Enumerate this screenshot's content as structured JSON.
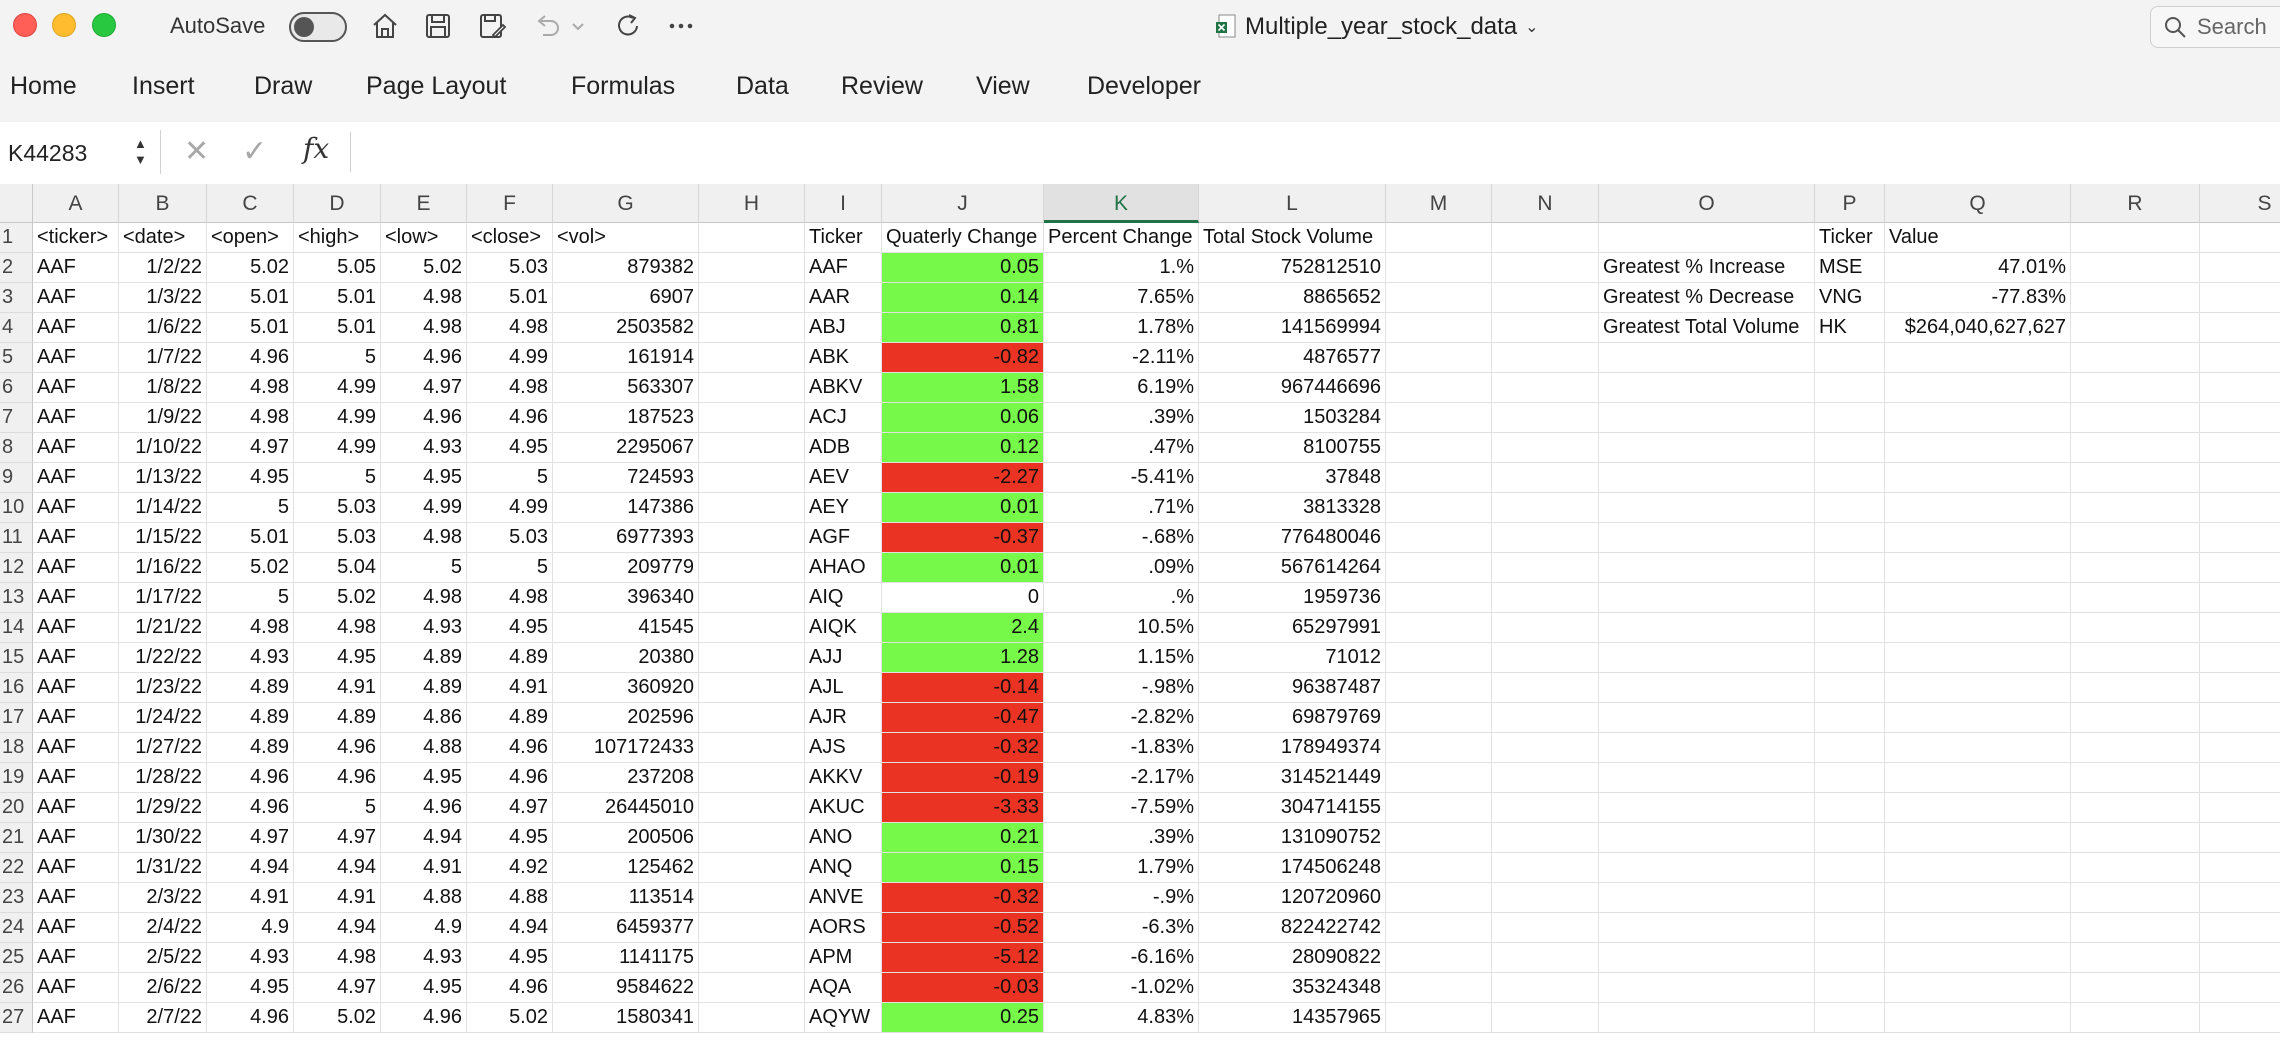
{
  "window": {
    "autosave_label": "AutoSave",
    "doc_title": "Multiple_year_stock_data",
    "search_placeholder": "Search"
  },
  "ribbon_tabs": [
    "Home",
    "Insert",
    "Draw",
    "Page Layout",
    "Formulas",
    "Data",
    "Review",
    "View",
    "Developer"
  ],
  "formula_bar": {
    "cell_ref": "K44283",
    "fx": "fx",
    "content": ""
  },
  "columns": [
    "A",
    "B",
    "C",
    "D",
    "E",
    "F",
    "G",
    "H",
    "I",
    "J",
    "K",
    "L",
    "M",
    "N",
    "O",
    "P",
    "Q",
    "R",
    "S"
  ],
  "selected_column": "K",
  "colors": {
    "positive_fill": "#77f94a",
    "negative_fill": "#ea3323",
    "accent": "#217346"
  },
  "header_row": {
    "A": "<ticker>",
    "B": "<date>",
    "C": "<open>",
    "D": "<high>",
    "E": "<low>",
    "F": "<close>",
    "G": "<vol>",
    "I": "Ticker",
    "J": "Quaterly Change",
    "K": "Percent Change",
    "L": "Total Stock Volume",
    "P": "Ticker",
    "Q": "Value"
  },
  "raw_rows": [
    [
      "AAF",
      "1/2/22",
      "5.02",
      "5.05",
      "5.02",
      "5.03",
      "879382"
    ],
    [
      "AAF",
      "1/3/22",
      "5.01",
      "5.01",
      "4.98",
      "5.01",
      "6907"
    ],
    [
      "AAF",
      "1/6/22",
      "5.01",
      "5.01",
      "4.98",
      "4.98",
      "2503582"
    ],
    [
      "AAF",
      "1/7/22",
      "4.96",
      "5",
      "4.96",
      "4.99",
      "161914"
    ],
    [
      "AAF",
      "1/8/22",
      "4.98",
      "4.99",
      "4.97",
      "4.98",
      "563307"
    ],
    [
      "AAF",
      "1/9/22",
      "4.98",
      "4.99",
      "4.96",
      "4.96",
      "187523"
    ],
    [
      "AAF",
      "1/10/22",
      "4.97",
      "4.99",
      "4.93",
      "4.95",
      "2295067"
    ],
    [
      "AAF",
      "1/13/22",
      "4.95",
      "5",
      "4.95",
      "5",
      "724593"
    ],
    [
      "AAF",
      "1/14/22",
      "5",
      "5.03",
      "4.99",
      "4.99",
      "147386"
    ],
    [
      "AAF",
      "1/15/22",
      "5.01",
      "5.03",
      "4.98",
      "5.03",
      "6977393"
    ],
    [
      "AAF",
      "1/16/22",
      "5.02",
      "5.04",
      "5",
      "5",
      "209779"
    ],
    [
      "AAF",
      "1/17/22",
      "5",
      "5.02",
      "4.98",
      "4.98",
      "396340"
    ],
    [
      "AAF",
      "1/21/22",
      "4.98",
      "4.98",
      "4.93",
      "4.95",
      "41545"
    ],
    [
      "AAF",
      "1/22/22",
      "4.93",
      "4.95",
      "4.89",
      "4.89",
      "20380"
    ],
    [
      "AAF",
      "1/23/22",
      "4.89",
      "4.91",
      "4.89",
      "4.91",
      "360920"
    ],
    [
      "AAF",
      "1/24/22",
      "4.89",
      "4.89",
      "4.86",
      "4.89",
      "202596"
    ],
    [
      "AAF",
      "1/27/22",
      "4.89",
      "4.96",
      "4.88",
      "4.96",
      "107172433"
    ],
    [
      "AAF",
      "1/28/22",
      "4.96",
      "4.96",
      "4.95",
      "4.96",
      "237208"
    ],
    [
      "AAF",
      "1/29/22",
      "4.96",
      "5",
      "4.96",
      "4.97",
      "26445010"
    ],
    [
      "AAF",
      "1/30/22",
      "4.97",
      "4.97",
      "4.94",
      "4.95",
      "200506"
    ],
    [
      "AAF",
      "1/31/22",
      "4.94",
      "4.94",
      "4.91",
      "4.92",
      "125462"
    ],
    [
      "AAF",
      "2/3/22",
      "4.91",
      "4.91",
      "4.88",
      "4.88",
      "113514"
    ],
    [
      "AAF",
      "2/4/22",
      "4.9",
      "4.94",
      "4.9",
      "4.94",
      "6459377"
    ],
    [
      "AAF",
      "2/5/22",
      "4.93",
      "4.98",
      "4.93",
      "4.95",
      "1141175"
    ],
    [
      "AAF",
      "2/6/22",
      "4.95",
      "4.97",
      "4.95",
      "4.96",
      "9584622"
    ],
    [
      "AAF",
      "2/7/22",
      "4.96",
      "5.02",
      "4.96",
      "5.02",
      "1580341"
    ]
  ],
  "summary_rows": [
    [
      "AAF",
      "0.05",
      "1.%",
      "752812510"
    ],
    [
      "AAR",
      "0.14",
      "7.65%",
      "8865652"
    ],
    [
      "ABJ",
      "0.81",
      "1.78%",
      "141569994"
    ],
    [
      "ABK",
      "-0.82",
      "-2.11%",
      "4876577"
    ],
    [
      "ABKV",
      "1.58",
      "6.19%",
      "967446696"
    ],
    [
      "ACJ",
      "0.06",
      ".39%",
      "1503284"
    ],
    [
      "ADB",
      "0.12",
      ".47%",
      "8100755"
    ],
    [
      "AEV",
      "-2.27",
      "-5.41%",
      "37848"
    ],
    [
      "AEY",
      "0.01",
      ".71%",
      "3813328"
    ],
    [
      "AGF",
      "-0.37",
      "-.68%",
      "776480046"
    ],
    [
      "AHAO",
      "0.01",
      ".09%",
      "567614264"
    ],
    [
      "AIQ",
      "0",
      ".%",
      "1959736"
    ],
    [
      "AIQK",
      "2.4",
      "10.5%",
      "65297991"
    ],
    [
      "AJJ",
      "1.28",
      "1.15%",
      "71012"
    ],
    [
      "AJL",
      "-0.14",
      "-.98%",
      "96387487"
    ],
    [
      "AJR",
      "-0.47",
      "-2.82%",
      "69879769"
    ],
    [
      "AJS",
      "-0.32",
      "-1.83%",
      "178949374"
    ],
    [
      "AKKV",
      "-0.19",
      "-2.17%",
      "314521449"
    ],
    [
      "AKUC",
      "-3.33",
      "-7.59%",
      "304714155"
    ],
    [
      "ANO",
      "0.21",
      ".39%",
      "131090752"
    ],
    [
      "ANQ",
      "0.15",
      "1.79%",
      "174506248"
    ],
    [
      "ANVE",
      "-0.32",
      "-.9%",
      "120720960"
    ],
    [
      "AORS",
      "-0.52",
      "-6.3%",
      "822422742"
    ],
    [
      "APM",
      "-5.12",
      "-6.16%",
      "28090822"
    ],
    [
      "AQA",
      "-0.03",
      "-1.02%",
      "35324348"
    ],
    [
      "AQYW",
      "0.25",
      "4.83%",
      "14357965"
    ]
  ],
  "greatest": [
    [
      "Greatest % Increase",
      "MSE",
      "47.01%"
    ],
    [
      "Greatest % Decrease",
      "VNG",
      "-77.83%"
    ],
    [
      "Greatest Total Volume",
      "HK",
      "$264,040,627,627"
    ]
  ]
}
